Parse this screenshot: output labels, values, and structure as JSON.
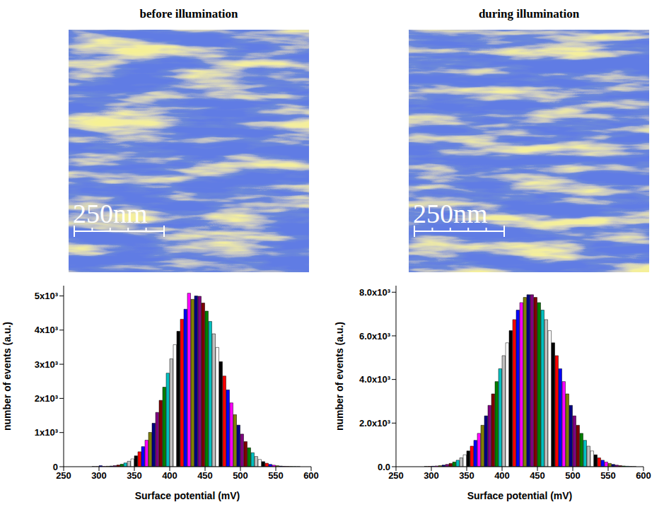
{
  "chart_data": [
    {
      "type": "histogram",
      "title": "before illumination",
      "annotations": [
        "250nm"
      ],
      "x_label": "Surface potential (mV)",
      "y_label": "number of events (a.u.)",
      "bins": [
        290,
        295,
        300,
        305,
        310,
        315,
        320,
        325,
        330,
        335,
        340,
        345,
        350,
        355,
        360,
        365,
        370,
        375,
        380,
        385,
        390,
        395,
        400,
        405,
        410,
        415,
        420,
        425,
        430,
        435,
        440,
        445,
        450,
        455,
        460,
        465,
        470,
        475,
        480,
        485,
        490,
        495,
        500,
        505,
        510,
        515,
        520,
        525,
        530,
        535,
        540,
        545,
        550,
        555,
        560,
        565,
        570,
        575,
        580,
        585,
        590
      ],
      "values": [
        2,
        3,
        30,
        8,
        13,
        20,
        32,
        49,
        74,
        110,
        159,
        228,
        318,
        437,
        588,
        777,
        1005,
        1273,
        1590,
        1943,
        2329,
        2739,
        3159,
        3573,
        3965,
        4318,
        4611,
        5080,
        4900,
        5000,
        4990,
        4792,
        4556,
        4252,
        3891,
        3492,
        3075,
        2655,
        2249,
        1869,
        1524,
        1218,
        955,
        735,
        554,
        410,
        298,
        212,
        148,
        101,
        68,
        45,
        29,
        18,
        11,
        7,
        4,
        2,
        1,
        0
      ],
      "colors": [
        "#000000",
        "#ff0000",
        "#0000ff",
        "#ff00ff",
        "#808000",
        "#000080",
        "#800080",
        "#800000",
        "#008000",
        "#00c0c0",
        "#c0c0c0",
        "#ffffff",
        "#000000",
        "#ff0000",
        "#0000ff",
        "#ff00ff",
        "#808000",
        "#000080",
        "#800080",
        "#800000",
        "#008000",
        "#00c0c0",
        "#c0c0c0",
        "#ffffff",
        "#000000",
        "#ff0000",
        "#0000ff",
        "#ff00ff",
        "#808000",
        "#000080",
        "#800080",
        "#800000",
        "#008000",
        "#00c0c0",
        "#c0c0c0",
        "#ffffff",
        "#000000",
        "#ff0000",
        "#0000ff",
        "#ff00ff",
        "#808000",
        "#000080",
        "#800080",
        "#800000",
        "#008000",
        "#00c0c0",
        "#c0c0c0",
        "#ffffff",
        "#000000",
        "#ff0000",
        "#0000ff",
        "#ff00ff",
        "#808000",
        "#000080",
        "#800080",
        "#800000",
        "#008000",
        "#00c0c0",
        "#c0c0c0",
        "#ffffff"
      ],
      "xlim": [
        250,
        600
      ],
      "xticks": [
        250,
        300,
        350,
        400,
        450,
        500,
        550,
        600
      ],
      "ylim": [
        0,
        5300
      ],
      "yticks": [
        0,
        {
          "value": 1000,
          "label": "1x10³"
        },
        {
          "value": 2000,
          "label": "2x10³"
        },
        {
          "value": 3000,
          "label": "3x10³"
        },
        {
          "value": 4000,
          "label": "4x10³"
        },
        {
          "value": 5000,
          "label": "5x10³"
        }
      ]
    },
    {
      "type": "histogram",
      "title": "during illumination",
      "annotations": [
        "250nm"
      ],
      "x_label": "Surface potential (mV)",
      "y_label": "number of events (a.u.)",
      "bins": [
        290,
        295,
        300,
        305,
        310,
        315,
        320,
        325,
        330,
        335,
        340,
        345,
        350,
        355,
        360,
        365,
        370,
        375,
        380,
        385,
        390,
        395,
        400,
        405,
        410,
        415,
        420,
        425,
        430,
        435,
        440,
        445,
        450,
        455,
        460,
        465,
        470,
        475,
        480,
        485,
        490,
        495,
        500,
        505,
        510,
        515,
        520,
        525,
        530,
        535,
        540,
        545,
        550,
        555,
        560,
        565,
        570,
        575,
        580,
        585,
        590
      ],
      "values": [
        9,
        14,
        21,
        33,
        49,
        73,
        106,
        151,
        214,
        296,
        405,
        546,
        722,
        942,
        1209,
        1528,
        1901,
        2331,
        2813,
        3339,
        3903,
        4493,
        5092,
        5680,
        6238,
        6745,
        7179,
        7524,
        7762,
        7885,
        7885,
        7762,
        7524,
        7179,
        6745,
        6238,
        5680,
        5092,
        4493,
        3903,
        3339,
        2813,
        2331,
        1901,
        1528,
        1209,
        942,
        722,
        546,
        405,
        296,
        214,
        151,
        106,
        73,
        49,
        33,
        21,
        14,
        9
      ],
      "colors": [
        "#000000",
        "#ff0000",
        "#0000ff",
        "#ff00ff",
        "#808000",
        "#000080",
        "#800080",
        "#800000",
        "#008000",
        "#00c0c0",
        "#c0c0c0",
        "#ffffff",
        "#000000",
        "#ff0000",
        "#0000ff",
        "#ff00ff",
        "#808000",
        "#000080",
        "#800080",
        "#800000",
        "#008000",
        "#00c0c0",
        "#c0c0c0",
        "#ffffff",
        "#000000",
        "#ff0000",
        "#0000ff",
        "#ff00ff",
        "#808000",
        "#000080",
        "#800080",
        "#800000",
        "#008000",
        "#00c0c0",
        "#c0c0c0",
        "#ffffff",
        "#000000",
        "#ff0000",
        "#0000ff",
        "#ff00ff",
        "#808000",
        "#000080",
        "#800080",
        "#800000",
        "#008000",
        "#00c0c0",
        "#c0c0c0",
        "#ffffff",
        "#000000",
        "#ff0000",
        "#0000ff",
        "#ff00ff",
        "#808000",
        "#000080",
        "#800080",
        "#800000",
        "#008000",
        "#00c0c0",
        "#c0c0c0",
        "#ffffff"
      ],
      "xlim": [
        250,
        600
      ],
      "xticks": [
        250,
        300,
        350,
        400,
        450,
        500,
        550,
        600
      ],
      "ylim": [
        0,
        8300
      ],
      "yticks": [
        {
          "value": 0,
          "label": "0.0"
        },
        {
          "value": 2000,
          "label": "2.0x10³"
        },
        {
          "value": 4000,
          "label": "4.0x10³"
        },
        {
          "value": 6000,
          "label": "6.0x10³"
        },
        {
          "value": 8000,
          "label": "8.0x10³"
        }
      ]
    }
  ]
}
